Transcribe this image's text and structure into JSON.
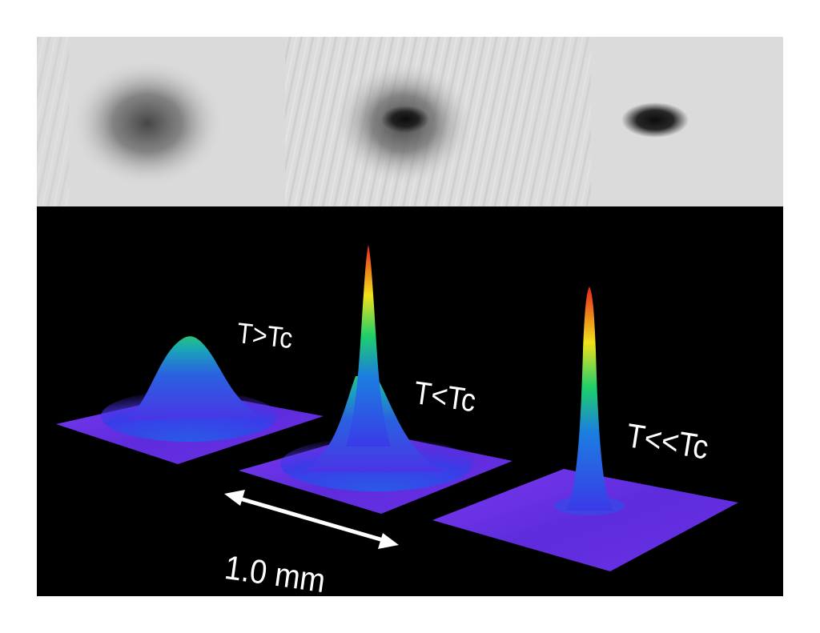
{
  "panels": {
    "absorption_images": {
      "frames": [
        {
          "clouds": "thermal cloud only"
        },
        {
          "clouds": "thermal cloud with central condensate"
        },
        {
          "clouds": "condensate only"
        }
      ],
      "colors": {
        "background": "#d9d9d9",
        "shadow": "#151515"
      }
    },
    "density_plots": {
      "labels": {
        "above_tc": "T>Tc",
        "below_tc": "T<Tc",
        "far_below_tc": "T<<Tc"
      },
      "scale_bar": {
        "label": "1.0 mm"
      },
      "colors": {
        "background": "#000000",
        "base": "#6a2ee8",
        "low": "#3a3ae8",
        "mid": "#1fd06a",
        "high": "#f2e21a",
        "peak": "#e8231b",
        "text": "#ffffff"
      }
    }
  }
}
